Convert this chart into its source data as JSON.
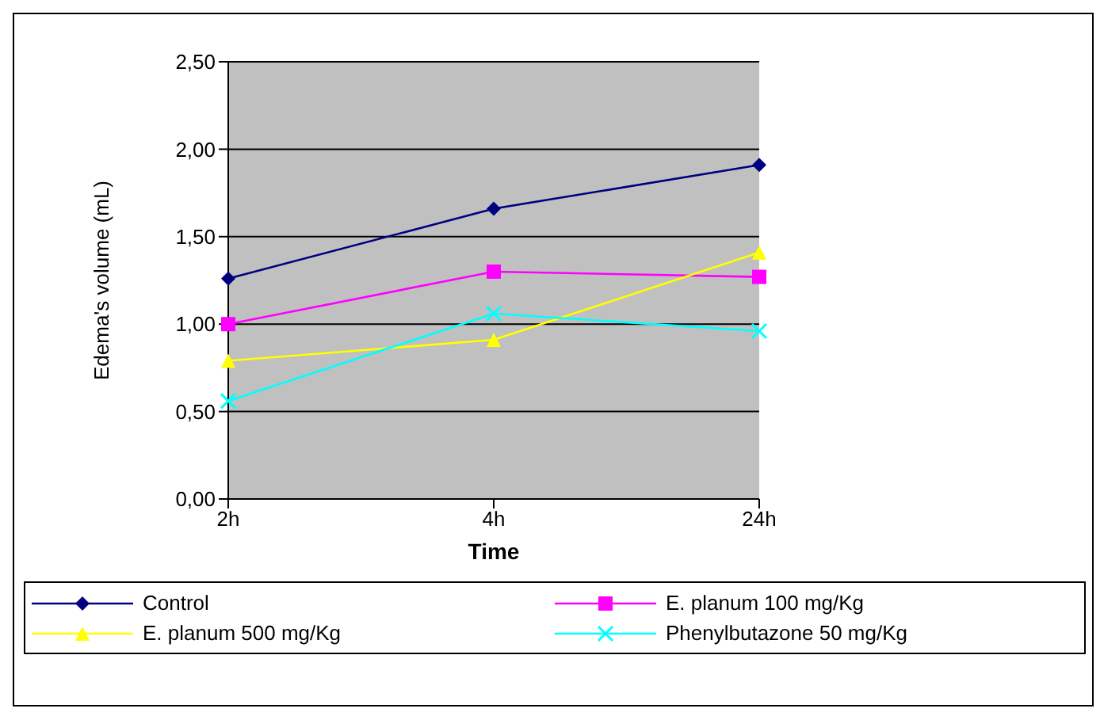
{
  "chart_data": {
    "type": "line",
    "xlabel": "Time",
    "ylabel": "Edema's volume (mL)",
    "categories": [
      "2h",
      "4h",
      "24h"
    ],
    "series": [
      {
        "name": "Control",
        "color": "#000080",
        "marker": "diamond",
        "values": [
          1.26,
          1.66,
          1.91
        ]
      },
      {
        "name": "E. planum 100 mg/Kg",
        "color": "#ff00ff",
        "marker": "square",
        "values": [
          1.0,
          1.3,
          1.27
        ]
      },
      {
        "name": "E. planum 500 mg/Kg",
        "color": "#ffff00",
        "marker": "triangle",
        "values": [
          0.79,
          0.91,
          1.41
        ]
      },
      {
        "name": "Phenylbutazone 50 mg/Kg",
        "color": "#00ffff",
        "marker": "cross",
        "values": [
          0.56,
          1.06,
          0.96
        ]
      }
    ],
    "ylim": [
      0,
      2.5
    ],
    "yticks": [
      {
        "value": 0,
        "label": "0,00"
      },
      {
        "value": 0.5,
        "label": "0,50"
      },
      {
        "value": 1,
        "label": "1,00"
      },
      {
        "value": 1.5,
        "label": "1,50"
      },
      {
        "value": 2,
        "label": "2,00"
      },
      {
        "value": 2.5,
        "label": "2,50"
      }
    ],
    "grid": "y",
    "legend": "bottom",
    "line_style": "solid"
  }
}
